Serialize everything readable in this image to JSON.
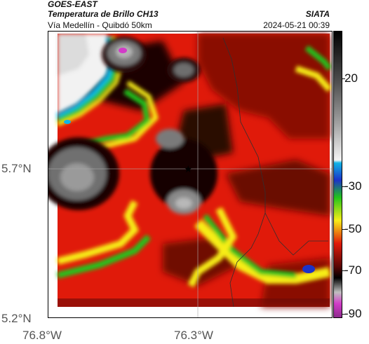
{
  "header": {
    "satellite": "GOES-EAST",
    "product": "Temperatura de Brillo CH13",
    "region": "Vía Medellín - Quibdó 50km",
    "agency": "SIATA",
    "timestamp": "2024-05-21 00:39"
  },
  "axes": {
    "y_ticks": [
      "5.7°N",
      "5.2°N"
    ],
    "x_ticks": [
      "76.8°W",
      "76.3°W"
    ]
  },
  "colorbar": {
    "ticks": [
      "20",
      "-30",
      "-50",
      "-70",
      "-90"
    ]
  },
  "colors": {
    "warm_red": "#e01a0a",
    "deep_red": "#8a0c04",
    "cold_black": "#150606",
    "cloud_gray": "#7a7a7a",
    "clear_white": "#f2f2f2",
    "green": "#22c41a",
    "yellow": "#f7ee18",
    "cyan": "#10b4e6",
    "blue": "#1c32c8",
    "magenta": "#d23cc8"
  }
}
